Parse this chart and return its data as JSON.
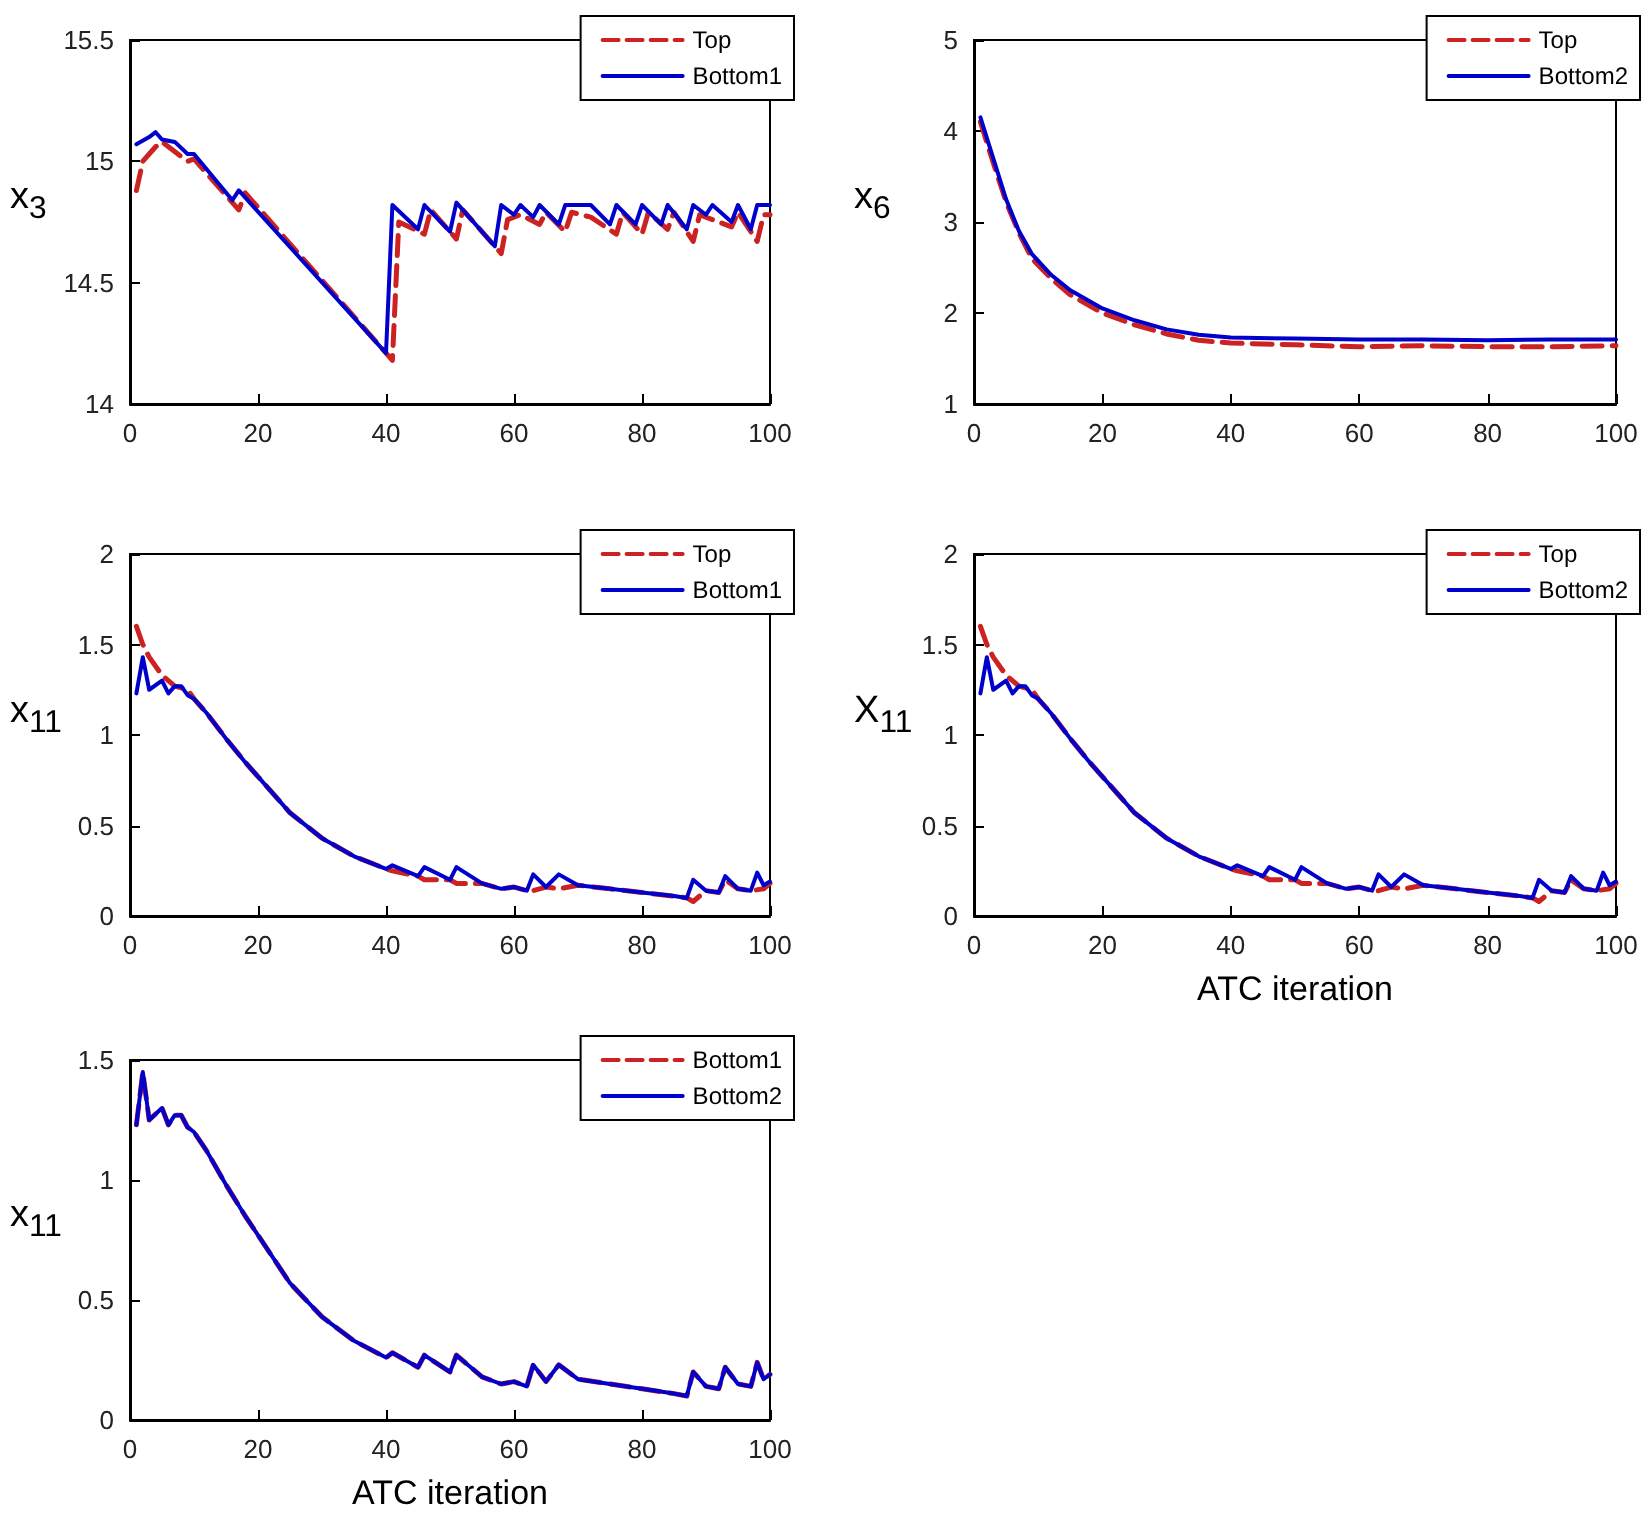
{
  "chart_data": [
    {
      "type": "line",
      "ylabel": "x$_{3}$",
      "xlim": [
        0,
        100
      ],
      "xticks": [
        0,
        20,
        40,
        60,
        80,
        100
      ],
      "ylim": [
        14,
        15.5
      ],
      "yticks": [
        14,
        14.5,
        15,
        15.5
      ],
      "legend": "top right",
      "series": [
        {
          "name": "Top",
          "color": "#cc2222",
          "line_style": "dashed",
          "x": [
            1,
            2,
            4,
            5,
            9,
            10,
            17,
            18,
            41,
            42,
            46,
            47,
            51,
            52,
            58,
            59,
            61,
            64,
            65,
            68,
            69,
            72,
            76,
            77,
            80,
            81,
            84,
            85,
            88,
            89,
            91,
            94,
            95,
            98,
            99,
            100
          ],
          "values": [
            14.88,
            15.0,
            15.06,
            15.08,
            15.0,
            15.01,
            14.8,
            14.87,
            14.18,
            14.75,
            14.7,
            14.8,
            14.68,
            14.8,
            14.62,
            14.76,
            14.78,
            14.74,
            14.79,
            14.71,
            14.79,
            14.77,
            14.7,
            14.79,
            14.7,
            14.79,
            14.72,
            14.79,
            14.67,
            14.78,
            14.76,
            14.73,
            14.79,
            14.67,
            14.78,
            14.78
          ]
        },
        {
          "name": "Bottom1",
          "color": "#0000cc",
          "line_style": "solid",
          "x": [
            1,
            3,
            4,
            5,
            7,
            9,
            10,
            16,
            17,
            40,
            41,
            45,
            46,
            50,
            51,
            57,
            58,
            60,
            61,
            63,
            64,
            67,
            68,
            72,
            75,
            76,
            79,
            80,
            83,
            84,
            87,
            88,
            90,
            91,
            94,
            95,
            97,
            98,
            100
          ],
          "values": [
            15.07,
            15.1,
            15.12,
            15.09,
            15.08,
            15.03,
            15.03,
            14.84,
            14.88,
            14.21,
            14.82,
            14.72,
            14.82,
            14.71,
            14.83,
            14.65,
            14.82,
            14.78,
            14.82,
            14.77,
            14.82,
            14.74,
            14.82,
            14.82,
            14.74,
            14.82,
            14.74,
            14.82,
            14.74,
            14.82,
            14.72,
            14.82,
            14.78,
            14.82,
            14.75,
            14.82,
            14.72,
            14.82,
            14.82
          ]
        }
      ]
    },
    {
      "type": "line",
      "ylabel": "x$_{6}$",
      "xlim": [
        0,
        100
      ],
      "xticks": [
        0,
        20,
        40,
        60,
        80,
        100
      ],
      "ylim": [
        1,
        5
      ],
      "yticks": [
        1,
        2,
        3,
        4,
        5
      ],
      "legend": "top right",
      "series": [
        {
          "name": "Top",
          "color": "#cc2222",
          "line_style": "dashed",
          "x": [
            1,
            3,
            5,
            7,
            9,
            12,
            15,
            20,
            25,
            30,
            35,
            40,
            50,
            60,
            70,
            80,
            90,
            100
          ],
          "values": [
            4.1,
            3.65,
            3.22,
            2.88,
            2.6,
            2.38,
            2.2,
            2.0,
            1.87,
            1.77,
            1.7,
            1.67,
            1.65,
            1.63,
            1.64,
            1.63,
            1.63,
            1.64
          ]
        },
        {
          "name": "Bottom2",
          "color": "#0000cc",
          "line_style": "solid",
          "x": [
            1,
            3,
            5,
            7,
            9,
            12,
            15,
            20,
            25,
            30,
            35,
            40,
            50,
            60,
            70,
            80,
            90,
            100
          ],
          "values": [
            4.15,
            3.7,
            3.25,
            2.9,
            2.65,
            2.42,
            2.25,
            2.05,
            1.92,
            1.82,
            1.76,
            1.73,
            1.72,
            1.71,
            1.71,
            1.7,
            1.71,
            1.71
          ]
        }
      ]
    },
    {
      "type": "line",
      "ylabel": "x$_{11}$",
      "xlim": [
        0,
        100
      ],
      "xticks": [
        0,
        20,
        40,
        60,
        80,
        100
      ],
      "ylim": [
        0,
        2
      ],
      "yticks": [
        0,
        0.5,
        1,
        1.5,
        2
      ],
      "legend": "top right",
      "series": [
        {
          "name": "Top",
          "color": "#cc2222",
          "line_style": "dashed",
          "x": [
            1,
            2,
            3,
            5,
            7,
            9,
            10,
            12,
            15,
            18,
            20,
            25,
            30,
            35,
            40,
            41,
            45,
            46,
            50,
            51,
            55,
            58,
            60,
            62,
            63,
            65,
            67,
            70,
            75,
            80,
            85,
            87,
            88,
            90,
            92,
            93,
            95,
            97,
            99,
            100
          ],
          "values": [
            1.6,
            1.5,
            1.43,
            1.33,
            1.27,
            1.25,
            1.2,
            1.12,
            0.98,
            0.85,
            0.77,
            0.57,
            0.43,
            0.33,
            0.26,
            0.25,
            0.22,
            0.2,
            0.2,
            0.18,
            0.18,
            0.15,
            0.16,
            0.14,
            0.14,
            0.16,
            0.15,
            0.17,
            0.15,
            0.13,
            0.11,
            0.1,
            0.08,
            0.14,
            0.13,
            0.2,
            0.15,
            0.14,
            0.15,
            0.18
          ]
        },
        {
          "name": "Bottom1",
          "color": "#0000cc",
          "line_style": "solid",
          "x": [
            1,
            2,
            3,
            5,
            6,
            7,
            8,
            9,
            10,
            12,
            15,
            18,
            20,
            25,
            30,
            35,
            40,
            41,
            45,
            46,
            50,
            51,
            55,
            58,
            60,
            62,
            63,
            65,
            67,
            70,
            75,
            80,
            85,
            87,
            88,
            90,
            92,
            93,
            95,
            97,
            98,
            99,
            100
          ],
          "values": [
            1.23,
            1.43,
            1.25,
            1.3,
            1.23,
            1.27,
            1.27,
            1.22,
            1.2,
            1.12,
            0.98,
            0.85,
            0.77,
            0.57,
            0.43,
            0.33,
            0.26,
            0.28,
            0.22,
            0.27,
            0.2,
            0.27,
            0.18,
            0.15,
            0.16,
            0.14,
            0.23,
            0.16,
            0.23,
            0.17,
            0.15,
            0.13,
            0.11,
            0.1,
            0.2,
            0.14,
            0.13,
            0.22,
            0.15,
            0.14,
            0.24,
            0.17,
            0.19
          ]
        }
      ]
    },
    {
      "type": "line",
      "ylabel": "X$_{11}$",
      "xlabel": "ATC iteration",
      "xlim": [
        0,
        100
      ],
      "xticks": [
        0,
        20,
        40,
        60,
        80,
        100
      ],
      "ylim": [
        0,
        2
      ],
      "yticks": [
        0,
        0.5,
        1,
        1.5,
        2
      ],
      "legend": "top right",
      "series": [
        {
          "name": "Top",
          "color": "#cc2222",
          "line_style": "dashed",
          "x": [
            1,
            2,
            3,
            5,
            7,
            9,
            10,
            12,
            15,
            18,
            20,
            25,
            30,
            35,
            40,
            41,
            45,
            46,
            50,
            51,
            55,
            58,
            60,
            62,
            63,
            65,
            67,
            70,
            75,
            80,
            85,
            87,
            88,
            90,
            92,
            93,
            95,
            97,
            99,
            100
          ],
          "values": [
            1.6,
            1.5,
            1.43,
            1.33,
            1.27,
            1.25,
            1.2,
            1.12,
            0.98,
            0.85,
            0.77,
            0.57,
            0.43,
            0.33,
            0.26,
            0.25,
            0.22,
            0.2,
            0.2,
            0.18,
            0.18,
            0.15,
            0.16,
            0.14,
            0.14,
            0.16,
            0.15,
            0.17,
            0.15,
            0.13,
            0.11,
            0.1,
            0.08,
            0.14,
            0.13,
            0.2,
            0.15,
            0.14,
            0.15,
            0.18
          ]
        },
        {
          "name": "Bottom2",
          "color": "#0000cc",
          "line_style": "solid",
          "x": [
            1,
            2,
            3,
            5,
            6,
            7,
            8,
            9,
            10,
            12,
            15,
            18,
            20,
            25,
            30,
            35,
            40,
            41,
            45,
            46,
            50,
            51,
            55,
            58,
            60,
            62,
            63,
            65,
            67,
            70,
            75,
            80,
            85,
            87,
            88,
            90,
            92,
            93,
            95,
            97,
            98,
            99,
            100
          ],
          "values": [
            1.23,
            1.43,
            1.25,
            1.3,
            1.23,
            1.27,
            1.27,
            1.22,
            1.2,
            1.12,
            0.98,
            0.85,
            0.77,
            0.57,
            0.43,
            0.33,
            0.26,
            0.28,
            0.22,
            0.27,
            0.2,
            0.27,
            0.18,
            0.15,
            0.16,
            0.14,
            0.23,
            0.16,
            0.23,
            0.17,
            0.15,
            0.13,
            0.11,
            0.1,
            0.2,
            0.14,
            0.13,
            0.22,
            0.15,
            0.14,
            0.24,
            0.17,
            0.19
          ]
        }
      ]
    },
    {
      "type": "line",
      "ylabel": "x$_{11}$",
      "xlabel": "ATC iteration",
      "xlim": [
        0,
        100
      ],
      "xticks": [
        0,
        20,
        40,
        60,
        80,
        100
      ],
      "ylim": [
        0,
        1.5
      ],
      "yticks": [
        0,
        0.5,
        1,
        1.5
      ],
      "legend": "top right",
      "series": [
        {
          "name": "Bottom1",
          "color": "#cc2222",
          "line_style": "dashed",
          "x": [
            1,
            2,
            3,
            5,
            6,
            7,
            8,
            9,
            10,
            12,
            15,
            18,
            20,
            25,
            30,
            35,
            40,
            41,
            45,
            46,
            50,
            51,
            55,
            58,
            60,
            62,
            63,
            65,
            67,
            70,
            75,
            80,
            85,
            87,
            88,
            90,
            92,
            93,
            95,
            97,
            98,
            99,
            100
          ],
          "values": [
            1.23,
            1.45,
            1.25,
            1.3,
            1.23,
            1.27,
            1.27,
            1.22,
            1.2,
            1.12,
            0.98,
            0.85,
            0.77,
            0.57,
            0.43,
            0.33,
            0.26,
            0.28,
            0.22,
            0.27,
            0.2,
            0.27,
            0.18,
            0.15,
            0.16,
            0.14,
            0.23,
            0.16,
            0.23,
            0.17,
            0.15,
            0.13,
            0.11,
            0.1,
            0.2,
            0.14,
            0.13,
            0.22,
            0.15,
            0.14,
            0.24,
            0.17,
            0.19
          ]
        },
        {
          "name": "Bottom2",
          "color": "#0000cc",
          "line_style": "solid",
          "x": [
            1,
            2,
            3,
            5,
            6,
            7,
            8,
            9,
            10,
            12,
            15,
            18,
            20,
            25,
            30,
            35,
            40,
            41,
            45,
            46,
            50,
            51,
            55,
            58,
            60,
            62,
            63,
            65,
            67,
            70,
            75,
            80,
            85,
            87,
            88,
            90,
            92,
            93,
            95,
            97,
            98,
            99,
            100
          ],
          "values": [
            1.23,
            1.45,
            1.25,
            1.3,
            1.23,
            1.27,
            1.27,
            1.22,
            1.2,
            1.12,
            0.98,
            0.85,
            0.77,
            0.57,
            0.43,
            0.33,
            0.26,
            0.28,
            0.22,
            0.27,
            0.2,
            0.27,
            0.18,
            0.15,
            0.16,
            0.14,
            0.23,
            0.16,
            0.23,
            0.17,
            0.15,
            0.13,
            0.11,
            0.1,
            0.2,
            0.14,
            0.13,
            0.22,
            0.15,
            0.14,
            0.24,
            0.17,
            0.19
          ]
        }
      ]
    }
  ]
}
